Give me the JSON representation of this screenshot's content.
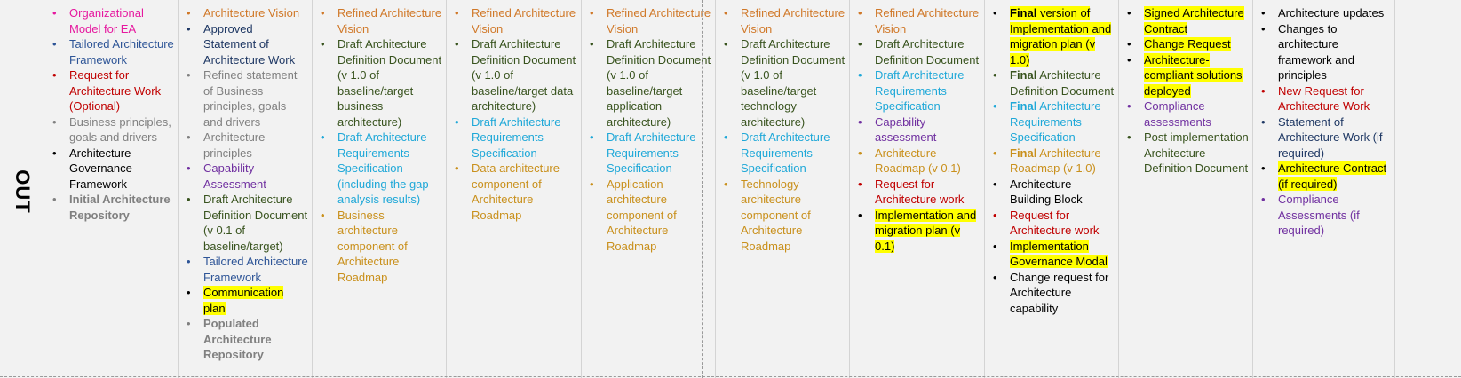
{
  "row_label": "OUT",
  "colors": {
    "magenta": "#e6199f",
    "blue": "#2e5597",
    "red": "#c00000",
    "gray": "#808080",
    "black": "#000000",
    "orange": "#d07828",
    "navy": "#1f3864",
    "purple": "#7030a0",
    "green": "#38531e",
    "cyan": "#1fa8d8",
    "gold": "#c9901c",
    "highlight": "#ffff00"
  },
  "columns": [
    {
      "items": [
        {
          "text": "Organizational Model for EA",
          "color": "magenta"
        },
        {
          "text": "Tailored Architecture Framework",
          "color": "blue"
        },
        {
          "text": "Request for Architecture Work (Optional)",
          "color": "red"
        },
        {
          "text": "Business principles, goals and drivers",
          "color": "gray"
        },
        {
          "text": "Architecture Governance Framework",
          "color": "black"
        },
        {
          "text": "Initial Architecture Repository",
          "color": "gray",
          "bold": true
        }
      ]
    },
    {
      "items": [
        {
          "text": "Architecture Vision",
          "color": "orange"
        },
        {
          "text": "Approved Statement of Architecture Work",
          "color": "navy"
        },
        {
          "text": "Refined statement of Business principles, goals and drivers",
          "color": "gray"
        },
        {
          "text": "Architecture principles",
          "color": "gray"
        },
        {
          "text": "Capability Assessment",
          "color": "purple"
        },
        {
          "text": "Draft Architecture Definition Document (v 0.1 of baseline/target)",
          "color": "green"
        },
        {
          "text": "Tailored Architecture Framework",
          "color": "blue"
        },
        {
          "text": "Communication plan",
          "color": "black",
          "highlight": true
        },
        {
          "text": "Populated Architecture Repository",
          "color": "gray",
          "bold": true
        }
      ]
    },
    {
      "items": [
        {
          "text": "Refined Architecture Vision",
          "color": "orange"
        },
        {
          "text": "Draft Architecture Definition Document (v 1.0 of baseline/target business architecture)",
          "color": "green"
        },
        {
          "text": "Draft Architecture Requirements Specification (including the gap analysis results)",
          "color": "cyan"
        },
        {
          "text": "Business architecture component of Architecture Roadmap",
          "color": "gold"
        }
      ]
    },
    {
      "items": [
        {
          "text": "Refined Architecture Vision",
          "color": "orange"
        },
        {
          "text": "Draft Architecture Definition Document (v 1.0 of baseline/target data architecture)",
          "color": "green"
        },
        {
          "text": "Draft Architecture Requirements Specification",
          "color": "cyan"
        },
        {
          "text": "Data architecture component of Architecture Roadmap",
          "color": "gold"
        }
      ]
    },
    {
      "items": [
        {
          "text": "Refined Architecture Vision",
          "color": "orange"
        },
        {
          "text": "Draft Architecture Definition Document (v 1.0 of baseline/target application architecture)",
          "color": "green"
        },
        {
          "text": "Draft Architecture Requirements Specification",
          "color": "cyan"
        },
        {
          "text": "Application architecture component of Architecture Roadmap",
          "color": "gold"
        }
      ]
    },
    {
      "items": [
        {
          "text": "Refined Architecture Vision",
          "color": "orange"
        },
        {
          "text": "Draft Architecture Definition Document (v 1.0 of baseline/target technology architecture)",
          "color": "green"
        },
        {
          "text": "Draft Architecture Requirements Specification",
          "color": "cyan"
        },
        {
          "text": "Technology architecture component of Architecture Roadmap",
          "color": "gold"
        }
      ]
    },
    {
      "items": [
        {
          "text": "Refined Architecture Vision",
          "color": "orange"
        },
        {
          "text": "Draft Architecture Definition Document",
          "color": "green"
        },
        {
          "text": "Draft Architecture Requirements Specification",
          "color": "cyan"
        },
        {
          "text": "Capability assessment",
          "color": "purple"
        },
        {
          "text": "Architecture Roadmap (v 0.1)",
          "color": "gold"
        },
        {
          "text": "Request for Architecture work",
          "color": "red"
        },
        {
          "text": "Implementation and migration plan (v 0.1)",
          "color": "black",
          "highlight": true
        }
      ]
    },
    {
      "items": [
        {
          "bold_prefix": "Final",
          "text": " version of Implementation and migration plan (v 1.0)",
          "color": "black",
          "highlight": true
        },
        {
          "bold_prefix": "Final",
          "text": " Architecture Definition Document",
          "color": "green"
        },
        {
          "bold_prefix": "Final",
          "text": " Architecture Requirements Specification",
          "color": "cyan"
        },
        {
          "bold_prefix": "Final",
          "text": " Architecture Roadmap (v 1.0)",
          "color": "gold"
        },
        {
          "text": "Architecture Building Block",
          "color": "black"
        },
        {
          "text": "Request for Architecture work",
          "color": "red"
        },
        {
          "text": "Implementation Governance Modal",
          "color": "black",
          "highlight": true
        },
        {
          "text": "Change request for Architecture capability",
          "color": "black"
        }
      ]
    },
    {
      "items": [
        {
          "text": "Signed Architecture Contract",
          "color": "black",
          "highlight": true
        },
        {
          "text": "Change Request",
          "color": "black",
          "highlight": true
        },
        {
          "text": "Architecture-compliant solutions deployed",
          "color": "black",
          "highlight": true
        },
        {
          "text": "Compliance assessments",
          "color": "purple"
        },
        {
          "text": "Post implementation Architecture Definition Document",
          "color": "green"
        }
      ]
    },
    {
      "items": [
        {
          "text": "Architecture updates",
          "color": "black"
        },
        {
          "text": "Changes to architecture framework and principles",
          "color": "black"
        },
        {
          "text": "New Request for Architecture Work",
          "color": "red"
        },
        {
          "text": "Statement of Architecture Work (if required)",
          "color": "navy"
        },
        {
          "text": "Architecture Contract (if required)",
          "color": "black",
          "highlight": true
        },
        {
          "text": "Compliance Assessments (if required)",
          "color": "purple"
        }
      ]
    }
  ]
}
